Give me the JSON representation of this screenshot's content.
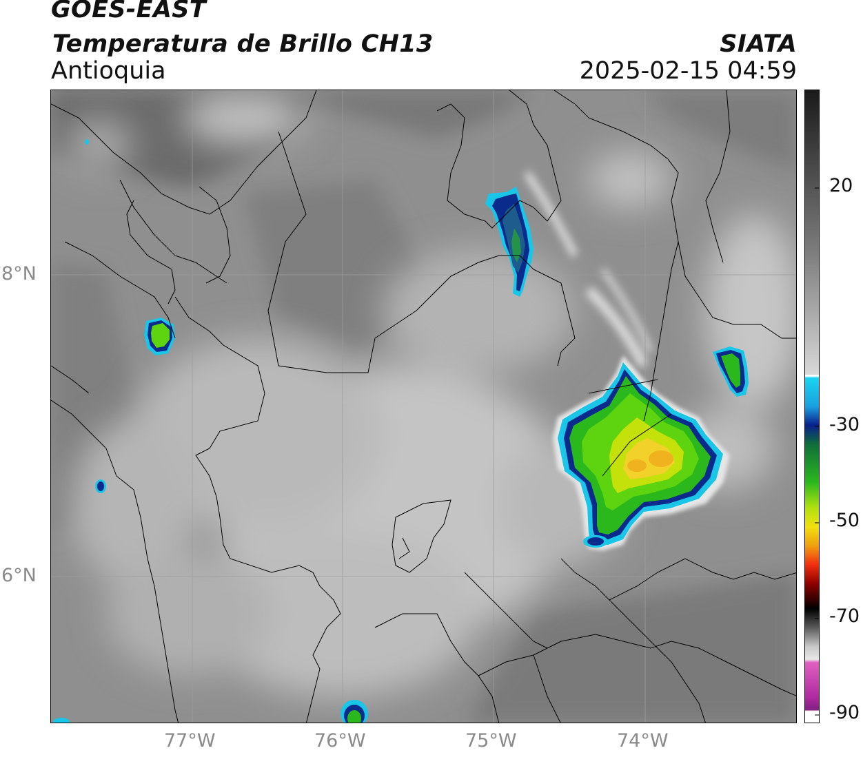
{
  "header": {
    "satellite": "GOES-EAST",
    "product": "Temperatura de Brillo CH13",
    "region": "Antioquia",
    "agency": "SIATA",
    "datetime": "2025-02-15 04:59"
  },
  "map": {
    "lat_labels": [
      "8°N",
      "6°N"
    ],
    "lon_labels": [
      "77°W",
      "76°W",
      "75°W",
      "74°W"
    ]
  },
  "colorbar": {
    "tick_labels": [
      "20",
      "-30",
      "-50",
      "-70",
      "-90"
    ]
  },
  "colors": {
    "cold_core": "#f2d12b",
    "deep_convection": "#2ab81d",
    "cloud_edge": "#0a2a8c",
    "cyan_edge": "#19c6e8",
    "land_dark": "#6a6a6a",
    "cloud_light": "#c8c8c8"
  }
}
